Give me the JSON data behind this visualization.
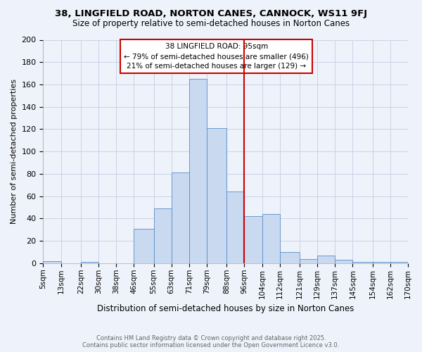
{
  "title1": "38, LINGFIELD ROAD, NORTON CANES, CANNOCK, WS11 9FJ",
  "title2": "Size of property relative to semi-detached houses in Norton Canes",
  "xlabel": "Distribution of semi-detached houses by size in Norton Canes",
  "ylabel": "Number of semi-detached properties",
  "bin_labels": [
    "5sqm",
    "13sqm",
    "22sqm",
    "30sqm",
    "38sqm",
    "46sqm",
    "55sqm",
    "63sqm",
    "71sqm",
    "79sqm",
    "88sqm",
    "96sqm",
    "104sqm",
    "112sqm",
    "121sqm",
    "129sqm",
    "137sqm",
    "145sqm",
    "154sqm",
    "162sqm",
    "170sqm"
  ],
  "bin_edges": [
    5,
    13,
    22,
    30,
    38,
    46,
    55,
    63,
    71,
    79,
    88,
    96,
    104,
    112,
    121,
    129,
    137,
    145,
    154,
    162,
    170
  ],
  "bar_heights": [
    2,
    0,
    1,
    0,
    0,
    31,
    49,
    81,
    165,
    121,
    64,
    42,
    44,
    10,
    4,
    7,
    3,
    1,
    1,
    1
  ],
  "bar_color": "#c8d9f0",
  "bar_edge_color": "#5b8dc8",
  "red_line_x": 96,
  "annotation_title": "38 LINGFIELD ROAD: 95sqm",
  "annotation_line1": "← 79% of semi-detached houses are smaller (496)",
  "annotation_line2": "21% of semi-detached houses are larger (129) →",
  "annotation_color": "#cc0000",
  "vline_color": "#cc0000",
  "ylim": [
    0,
    200
  ],
  "yticks": [
    0,
    20,
    40,
    60,
    80,
    100,
    120,
    140,
    160,
    180,
    200
  ],
  "grid_color": "#c8d4e8",
  "background_color": "#eef2fa",
  "footer_line1": "Contains HM Land Registry data © Crown copyright and database right 2025.",
  "footer_line2": "Contains public sector information licensed under the Open Government Licence v3.0.",
  "footer_color": "#666666"
}
